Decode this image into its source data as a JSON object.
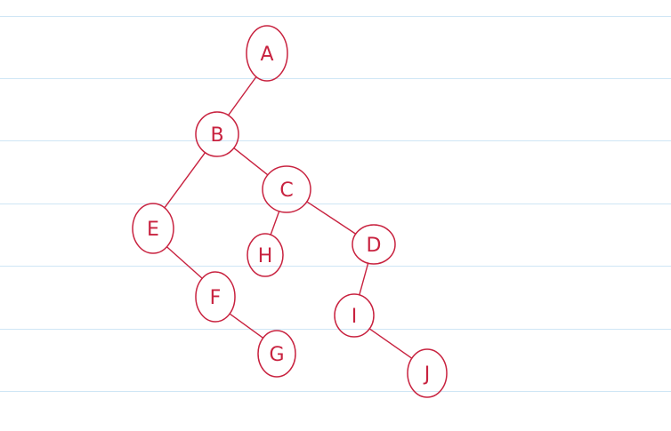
{
  "ink_color": "#c8223f",
  "rule_color": "#cfe6f5",
  "nodes": [
    {
      "id": "A",
      "label": "A"
    },
    {
      "id": "B",
      "label": "B"
    },
    {
      "id": "C",
      "label": "C"
    },
    {
      "id": "E",
      "label": "E"
    },
    {
      "id": "H",
      "label": "H"
    },
    {
      "id": "D",
      "label": "D"
    },
    {
      "id": "F",
      "label": "F"
    },
    {
      "id": "I",
      "label": "I"
    },
    {
      "id": "G",
      "label": "G"
    },
    {
      "id": "J",
      "label": "J"
    }
  ],
  "edges": [
    {
      "from": "A",
      "to": "B"
    },
    {
      "from": "B",
      "to": "E"
    },
    {
      "from": "B",
      "to": "C"
    },
    {
      "from": "C",
      "to": "H"
    },
    {
      "from": "C",
      "to": "D"
    },
    {
      "from": "E",
      "to": "F"
    },
    {
      "from": "F",
      "to": "G"
    },
    {
      "from": "D",
      "to": "I"
    },
    {
      "from": "I",
      "to": "J"
    }
  ]
}
